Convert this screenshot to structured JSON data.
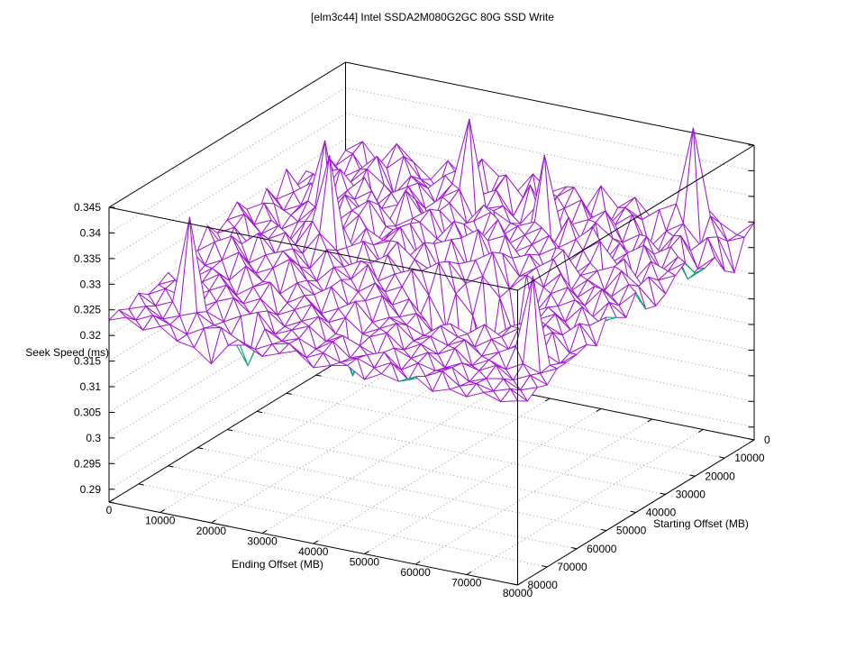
{
  "chart_data": {
    "type": "surface3d",
    "title": "[elm3c44] Intel SSDA2M080G2GC 80G SSD Write",
    "xlabel": "Ending Offset (MB)",
    "ylabel": "Starting Offset (MB)",
    "zlabel": "Seek Speed (ms)",
    "x_range": [
      0,
      80000
    ],
    "y_range": [
      0,
      80000
    ],
    "z_range": [
      0.2875,
      0.345
    ],
    "grid": true,
    "legend": "none",
    "colors": {
      "surface_top": "#a519d2",
      "surface_bottom": "#00a573",
      "grid": "#9b9b9b",
      "box": "#000000",
      "text": "#000000",
      "background": "#ffffff"
    },
    "x_ticks": {
      "values": [
        0,
        10000,
        20000,
        30000,
        40000,
        50000,
        60000,
        70000,
        80000
      ],
      "labels": [
        "0",
        "10000",
        "20000",
        "30000",
        "40000",
        "50000",
        "60000",
        "70000",
        "80000"
      ]
    },
    "y_ticks": {
      "values": [
        0,
        10000,
        20000,
        30000,
        40000,
        50000,
        60000,
        70000,
        80000
      ],
      "labels": [
        "0",
        "10000",
        "20000",
        "30000",
        "40000",
        "50000",
        "60000",
        "70000",
        "80000"
      ]
    },
    "z_ticks": {
      "values": [
        0.29,
        0.295,
        0.3,
        0.305,
        0.31,
        0.315,
        0.32,
        0.325,
        0.33,
        0.335,
        0.34,
        0.345
      ],
      "labels": [
        "0.29",
        "0.295",
        "0.3",
        "0.305",
        "0.31",
        "0.315",
        "0.32",
        "0.325",
        "0.33",
        "0.335",
        "0.34",
        "0.345"
      ]
    },
    "x_values": [
      0,
      3333,
      6667,
      10000,
      13333,
      16667,
      20000,
      23333,
      26667,
      30000,
      33333,
      36667,
      40000,
      43333,
      46667,
      50000,
      53333,
      56667,
      60000,
      63333,
      66667,
      70000,
      73333,
      76667,
      80000
    ],
    "y_values": [
      0,
      3333,
      6667,
      10000,
      13333,
      16667,
      20000,
      23333,
      26667,
      30000,
      33333,
      36667,
      40000,
      43333,
      46667,
      50000,
      53333,
      56667,
      60000,
      63333,
      66667,
      70000,
      73333,
      76667,
      80000
    ],
    "z_grid": [
      [
        0.3278,
        0.3302,
        0.3265,
        0.3311,
        0.3282,
        0.3255,
        0.3298,
        0.327,
        0.3315,
        0.3288,
        0.3262,
        0.3306,
        0.3277,
        0.3295,
        0.3252,
        0.331,
        0.3274,
        0.3301,
        0.3266,
        0.3292,
        0.3258,
        0.3316,
        0.3285,
        0.3268,
        0.3299
      ],
      [
        0.326,
        0.329,
        0.3248,
        0.3275,
        0.3305,
        0.3267,
        0.3252,
        0.3296,
        0.3281,
        0.3258,
        0.3309,
        0.3272,
        0.3245,
        0.3287,
        0.3312,
        0.3264,
        0.325,
        0.3293,
        0.3276,
        0.3302,
        0.332,
        0.3475,
        0.331,
        0.3268,
        0.3282
      ],
      [
        0.3295,
        0.3256,
        0.3278,
        0.331,
        0.3242,
        0.3285,
        0.3268,
        0.33,
        0.3253,
        0.3274,
        0.3292,
        0.3247,
        0.3315,
        0.3261,
        0.3283,
        0.3306,
        0.325,
        0.3271,
        0.3297,
        0.3239,
        0.3279,
        0.33,
        0.3264,
        0.3288,
        0.3225
      ],
      [
        0.3249,
        0.3281,
        0.3264,
        0.3297,
        0.3273,
        0.3246,
        0.329,
        0.3258,
        0.3302,
        0.3435,
        0.3267,
        0.3279,
        0.3251,
        0.3294,
        0.3238,
        0.327,
        0.3286,
        0.331,
        0.3255,
        0.3277,
        0.3243,
        0.3288,
        0.3266,
        0.3298,
        0.324
      ],
      [
        0.3285,
        0.325,
        0.3302,
        0.3268,
        0.3241,
        0.3276,
        0.3295,
        0.3259,
        0.3288,
        0.331,
        0.3247,
        0.3281,
        0.3264,
        0.3236,
        0.341,
        0.3272,
        0.3253,
        0.3299,
        0.3275,
        0.3242,
        0.3292,
        0.326,
        0.3307,
        0.3249,
        0.3278
      ],
      [
        0.3267,
        0.3298,
        0.3244,
        0.3279,
        0.3311,
        0.3257,
        0.3272,
        0.3288,
        0.324,
        0.3295,
        0.3263,
        0.3304,
        0.325,
        0.3277,
        0.3292,
        0.3248,
        0.3314,
        0.3261,
        0.3238,
        0.3284,
        0.3256,
        0.3276,
        0.3297,
        0.3241,
        0.3269
      ],
      [
        0.3312,
        0.3273,
        0.3297,
        0.3259,
        0.328,
        0.3303,
        0.3251,
        0.3318,
        0.3276,
        0.3292,
        0.3264,
        0.3285,
        0.3309,
        0.3253,
        0.3278,
        0.3299,
        0.3267,
        0.329,
        0.332,
        0.3256,
        0.3283,
        0.3305,
        0.3262,
        0.3296,
        0.3271
      ],
      [
        0.3265,
        0.3286,
        0.331,
        0.3252,
        0.3301,
        0.3274,
        0.3295,
        0.326,
        0.3282,
        0.3306,
        0.3249,
        0.3291,
        0.3268,
        0.3313,
        0.3257,
        0.3278,
        0.3302,
        0.3254,
        0.3287,
        0.3311,
        0.3273,
        0.3248,
        0.3292,
        0.328,
        0.3303
      ],
      [
        0.3298,
        0.3262,
        0.3279,
        0.3304,
        0.3258,
        0.3289,
        0.3315,
        0.3271,
        0.3245,
        0.3293,
        0.3267,
        0.3308,
        0.3252,
        0.3284,
        0.33,
        0.3261,
        0.3276,
        0.3297,
        0.325,
        0.3281,
        0.3175,
        0.3302,
        0.3259,
        0.3274,
        0.329
      ],
      [
        0.3253,
        0.3287,
        0.3271,
        0.3306,
        0.343,
        0.3262,
        0.3298,
        0.3249,
        0.3283,
        0.3302,
        0.3256,
        0.3278,
        0.3294,
        0.3317,
        0.3251,
        0.3275,
        0.3289,
        0.326,
        0.3311,
        0.3268,
        0.3284,
        0.3299,
        0.3247,
        0.3292,
        0.3266
      ],
      [
        0.3281,
        0.33,
        0.3255,
        0.3277,
        0.3312,
        0.3269,
        0.3246,
        0.3291,
        0.3274,
        0.3307,
        0.326,
        0.3288,
        0.3303,
        0.3252,
        0.327,
        0.3296,
        0.3258,
        0.3282,
        0.3305,
        0.3249,
        0.3278,
        0.3264,
        0.3309,
        0.3286,
        0.3254
      ],
      [
        0.3307,
        0.327,
        0.3285,
        0.3248,
        0.3296,
        0.328,
        0.3314,
        0.3253,
        0.3277,
        0.3292,
        0.3266,
        0.3302,
        0.3249,
        0.3274,
        0.3288,
        0.331,
        0.3245,
        0.3279,
        0.3262,
        0.3295,
        0.3256,
        0.3284,
        0.3271,
        0.3301,
        0.326
      ],
      [
        0.3284,
        0.3302,
        0.327,
        0.3293,
        0.3262,
        0.3315,
        0.345,
        0.3277,
        0.3296,
        0.326,
        0.3308,
        0.3281,
        0.3265,
        0.329,
        0.3254,
        0.3275,
        0.324,
        0.316,
        0.322,
        0.3268,
        0.3287,
        0.3258,
        0.3297,
        0.3272,
        0.3304
      ],
      [
        0.327,
        0.3288,
        0.3256,
        0.3279,
        0.3298,
        0.3264,
        0.331,
        0.3283,
        0.3251,
        0.3272,
        0.3295,
        0.3259,
        0.3277,
        0.33,
        0.3246,
        0.321,
        0.3115,
        0.3185,
        0.314,
        0.323,
        0.3262,
        0.3281,
        0.3253,
        0.329,
        0.3267
      ],
      [
        0.3296,
        0.3258,
        0.3274,
        0.3302,
        0.3267,
        0.3285,
        0.3253,
        0.3297,
        0.327,
        0.3288,
        0.3255,
        0.3276,
        0.3291,
        0.3248,
        0.319,
        0.3095,
        0.3165,
        0.312,
        0.3205,
        0.3255,
        0.3272,
        0.325,
        0.3286,
        0.3263,
        0.3279
      ],
      [
        0.3259,
        0.3283,
        0.3301,
        0.3255,
        0.3278,
        0.3292,
        0.3269,
        0.3247,
        0.3281,
        0.3264,
        0.3299,
        0.3253,
        0.327,
        0.3216,
        0.3105,
        0.3175,
        0.313,
        0.32,
        0.3135,
        0.3245,
        0.326,
        0.3277,
        0.3249,
        0.3268,
        0.3291
      ],
      [
        0.3277,
        0.3249,
        0.3266,
        0.3288,
        0.3254,
        0.3271,
        0.3295,
        0.326,
        0.3243,
        0.3275,
        0.3258,
        0.3282,
        0.3246,
        0.3264,
        0.3228,
        0.313,
        0.319,
        0.3155,
        0.3225,
        0.3252,
        0.3239,
        0.3268,
        0.3255,
        0.3284,
        0.3247
      ],
      [
        0.3145,
        0.3238,
        0.3262,
        0.3245,
        0.328,
        0.3256,
        0.3239,
        0.3267,
        0.3251,
        0.3273,
        0.3244,
        0.3259,
        0.3276,
        0.3241,
        0.3255,
        0.3222,
        0.3248,
        0.3235,
        0.326,
        0.3243,
        0.3266,
        0.325,
        0.3272,
        0.3238,
        0.3261
      ],
      [
        0.3252,
        0.317,
        0.3247,
        0.3269,
        0.3235,
        0.3258,
        0.3273,
        0.324,
        0.3261,
        0.3233,
        0.3249,
        0.327,
        0.3236,
        0.3252,
        0.3244,
        0.323,
        0.3256,
        0.3241,
        0.3228,
        0.325,
        0.3237,
        0.3263,
        0.3245,
        0.3229,
        0.3254
      ],
      [
        0.324,
        0.3256,
        0.3231,
        0.3249,
        0.3266,
        0.3237,
        0.3253,
        0.3228,
        0.3245,
        0.3262,
        0.3234,
        0.325,
        0.3225,
        0.3242,
        0.3259,
        0.3232,
        0.3247,
        0.3236,
        0.3254,
        0.3229,
        0.3243,
        0.3261,
        0.3405,
        0.3238,
        0.3251
      ],
      [
        0.3233,
        0.3251,
        0.3242,
        0.3227,
        0.3246,
        0.326,
        0.3235,
        0.3248,
        0.3224,
        0.3241,
        0.3257,
        0.323,
        0.3155,
        0.3238,
        0.3252,
        0.3226,
        0.3244,
        0.3231,
        0.3249,
        0.3222,
        0.324,
        0.3228,
        0.3246,
        0.3234,
        0.325
      ],
      [
        0.3247,
        0.3229,
        0.3244,
        0.3415,
        0.3238,
        0.3225,
        0.3243,
        0.3257,
        0.3221,
        0.3236,
        0.325,
        0.3227,
        0.3245,
        0.3232,
        0.3219,
        0.3241,
        0.3228,
        0.3246,
        0.3223,
        0.3239,
        0.3231,
        0.3248,
        0.3226,
        0.3242,
        0.323
      ],
      [
        0.3228,
        0.324,
        0.3222,
        0.3235,
        0.3248,
        0.323,
        0.3218,
        0.3165,
        0.3243,
        0.3226,
        0.3238,
        0.3224,
        0.3246,
        0.322,
        0.3233,
        0.3245,
        0.3217,
        0.3237,
        0.3229,
        0.3242,
        0.3221,
        0.3234,
        0.324,
        0.3225,
        0.3237
      ],
      [
        0.3238,
        0.3225,
        0.3241,
        0.323,
        0.3217,
        0.3236,
        0.3244,
        0.3227,
        0.3215,
        0.3232,
        0.324,
        0.3219,
        0.3235,
        0.3223,
        0.3238,
        0.3226,
        0.3243,
        0.3216,
        0.323,
        0.3247,
        0.3224,
        0.3236,
        0.3228,
        0.3239,
        0.3222
      ],
      [
        0.323,
        0.3242,
        0.3224,
        0.3238,
        0.3216,
        0.321,
        0.3185,
        0.3228,
        0.3235,
        0.322,
        0.3232,
        0.3244,
        0.3218,
        0.3229,
        0.3236,
        0.3215,
        0.3233,
        0.3225,
        0.3241,
        0.3219,
        0.323,
        0.3222,
        0.3237,
        0.3226,
        0.3234
      ]
    ]
  }
}
